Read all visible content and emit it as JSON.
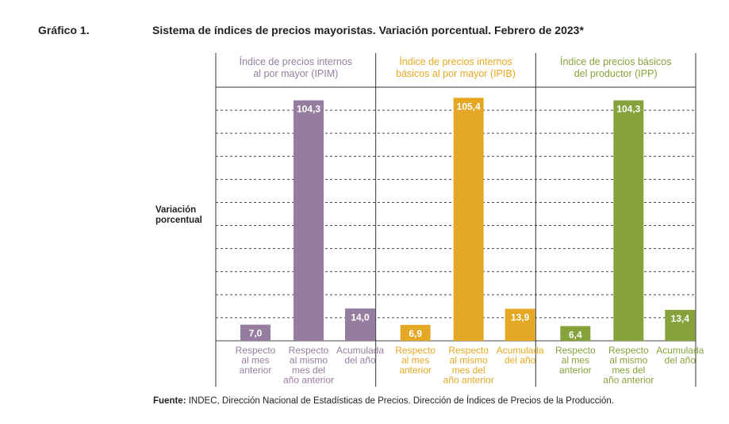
{
  "figure_label": "Gráfico 1.",
  "title": "Sistema de índices de precios mayoristas. Variación porcentual. Febrero de 2023*",
  "ylabel_lines": [
    "Variación",
    "porcentual"
  ],
  "source": {
    "prefix": "Fuente:",
    "text": " INDEC, Dirección Nacional de Estadísticas de Precios. Dirección de Índices de Precios de la Producción."
  },
  "chart_data": {
    "type": "bar",
    "title": "Sistema de índices de precios mayoristas. Variación porcentual. Febrero de 2023*",
    "ylabel": "Variación porcentual",
    "ylim": [
      0,
      110
    ],
    "grid": true,
    "categories": [
      [
        "Respecto",
        "al mes",
        "anterior"
      ],
      [
        "Respecto",
        "al mismo",
        "mes del",
        "año anterior"
      ],
      [
        "Acumulada",
        "del año"
      ]
    ],
    "groups": [
      {
        "header": [
          "Índice de precios internos",
          "al por mayor (IPIM)"
        ],
        "color": "#957d9f",
        "values": [
          7.0,
          104.3,
          14.0
        ],
        "labels": [
          "7,0",
          "104,3",
          "14,0"
        ]
      },
      {
        "header": [
          "Índice de precios internos",
          "básicos al por mayor (IPIB)"
        ],
        "color": "#e5a824",
        "values": [
          6.9,
          105.4,
          13.9
        ],
        "labels": [
          "6,9",
          "105,4",
          "13,9"
        ]
      },
      {
        "header": [
          "Índice de precios básicos",
          "del productor (IPP)"
        ],
        "color": "#86a23a",
        "values": [
          6.4,
          104.3,
          13.4
        ],
        "labels": [
          "6,4",
          "104,3",
          "13,4"
        ]
      }
    ]
  }
}
